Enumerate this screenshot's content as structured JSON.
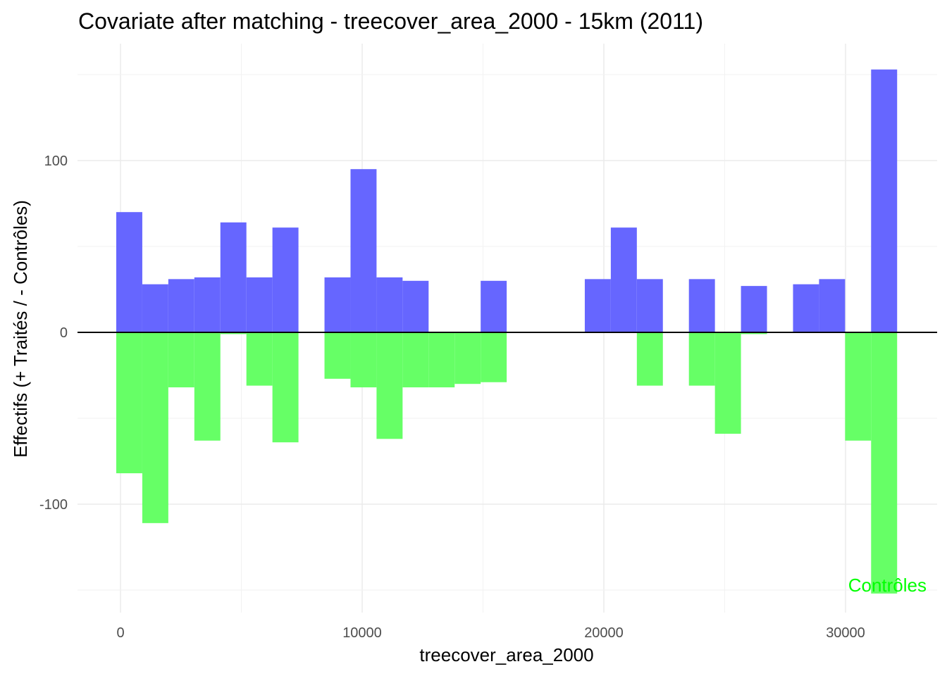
{
  "chart_data": {
    "type": "bar",
    "title": "Covariate after matching - treecover_area_2000 - 15km (2011)",
    "xlabel": "treecover_area_2000",
    "ylabel": "Effectifs (+ Traités / - Contrôles)",
    "xlim": [
      -1800,
      33500
    ],
    "ylim": [
      -163,
      168
    ],
    "x_ticks": [
      0,
      10000,
      20000,
      30000
    ],
    "x_tick_labels": [
      "0",
      "10000",
      "20000",
      "30000"
    ],
    "y_ticks": [
      -100,
      0,
      100
    ],
    "y_tick_labels": [
      "-100",
      "0",
      "100"
    ],
    "grid": true,
    "bin_start": -175,
    "bin_width": 1077,
    "series": [
      {
        "values": [
          70,
          28,
          31,
          32,
          64,
          32,
          61,
          0,
          32,
          95,
          32,
          30,
          0,
          0,
          30,
          0,
          0,
          0,
          31,
          61,
          31,
          0,
          31,
          0,
          27,
          0,
          28,
          31,
          0,
          153
        ],
        "color": "#6666FF"
      },
      {
        "name": "Contrôles",
        "values": [
          -82,
          -111,
          -32,
          -63,
          -1,
          -31,
          -64,
          0,
          -27,
          -32,
          -62,
          -32,
          -32,
          -30,
          -29,
          0,
          0,
          0,
          0,
          0,
          -31,
          0,
          -31,
          -59,
          -1,
          0,
          0,
          0,
          -63,
          -152
        ],
        "color": "#66FF66"
      }
    ],
    "annotation": {
      "text": "Contrôles",
      "color": "#00FF00"
    }
  }
}
